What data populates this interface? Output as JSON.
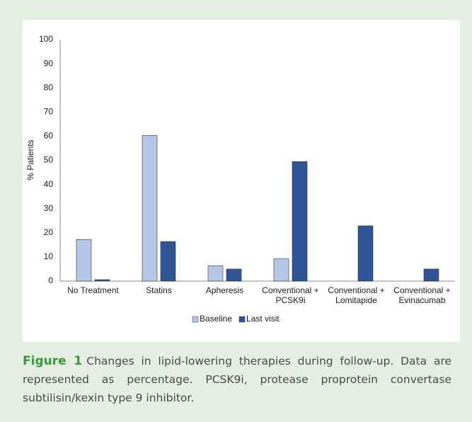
{
  "chart_data": {
    "type": "bar",
    "ylabel": "% Patients",
    "categories": [
      "No Treatment",
      "Statins",
      "Apheresis",
      "Conventional +\nPCSK9i",
      "Conventional +\nLomitapide",
      "Conventional +\nEvinacumab"
    ],
    "series": [
      {
        "name": "Baseline",
        "color": "#b4c7e7",
        "values": [
          17.2,
          60.3,
          6.4,
          9.2,
          0,
          0
        ]
      },
      {
        "name": "Last visit",
        "color": "#2f5597",
        "values": [
          0.6,
          16.4,
          5.0,
          49.5,
          22.9,
          5.0
        ]
      }
    ],
    "ylim": [
      0,
      100
    ],
    "yticks": [
      0,
      10,
      20,
      30,
      40,
      50,
      60,
      70,
      80,
      90,
      100
    ],
    "grid": false,
    "legend": "bottom"
  },
  "caption": {
    "label": "Figure 1",
    "text": "Changes in lipid-lowering therapies during follow-up. Data are represented as percentage. PCSK9i, protease proprotein convertase subtilisin/kexin type 9 inhibitor."
  }
}
